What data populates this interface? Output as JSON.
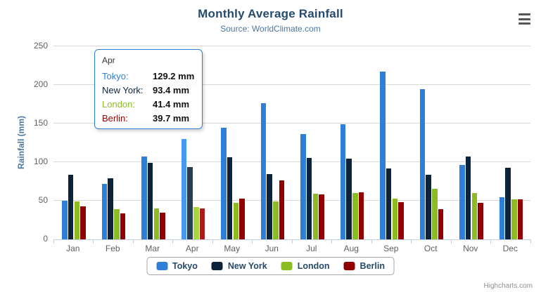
{
  "chart": {
    "title": "Monthly Average Rainfall",
    "subtitle": "Source: WorldClimate.com",
    "y_axis_title": "Rainfall (mm)",
    "credits_label": "Highcharts.com"
  },
  "chart_data": {
    "type": "bar",
    "title": "Monthly Average Rainfall",
    "subtitle": "Source: WorldClimate.com",
    "xlabel": "",
    "ylabel": "Rainfall (mm)",
    "ylim": [
      0,
      250
    ],
    "ytick_interval": 50,
    "yticks": [
      0,
      50,
      100,
      150,
      200,
      250
    ],
    "grid": true,
    "legend_position": "bottom",
    "hovered_category": "Apr",
    "categories": [
      "Jan",
      "Feb",
      "Mar",
      "Apr",
      "May",
      "Jun",
      "Jul",
      "Aug",
      "Sep",
      "Oct",
      "Nov",
      "Dec"
    ],
    "series": [
      {
        "name": "Tokyo",
        "color": "#2f7ed8",
        "hover_color": "#4897f1",
        "values": [
          49.9,
          71.5,
          106.4,
          129.2,
          144.0,
          176.0,
          135.6,
          148.5,
          216.4,
          194.1,
          95.6,
          54.4
        ]
      },
      {
        "name": "New York",
        "color": "#0d233a",
        "hover_color": "#283e55",
        "values": [
          83.6,
          78.8,
          98.5,
          93.4,
          106.0,
          84.5,
          105.0,
          104.3,
          91.2,
          83.5,
          106.6,
          92.3
        ]
      },
      {
        "name": "London",
        "color": "#8bbc21",
        "hover_color": "#a6d73c",
        "values": [
          48.9,
          38.8,
          39.3,
          41.4,
          47.0,
          48.3,
          59.0,
          59.6,
          52.4,
          65.2,
          59.3,
          51.2
        ]
      },
      {
        "name": "Berlin",
        "color": "#910000",
        "hover_color": "#ac1b1b",
        "values": [
          42.4,
          33.2,
          34.5,
          39.7,
          52.6,
          75.5,
          57.4,
          60.4,
          47.6,
          39.1,
          46.8,
          51.1
        ]
      }
    ],
    "axis_colors": {
      "grid": "#d8d8d8",
      "axis_line": "#c0d0e0",
      "labels": "#606060"
    }
  },
  "tooltip": {
    "header": "Apr",
    "border_color": "#2f7ed8",
    "unit": "mm",
    "rows": [
      {
        "label": "Tokyo",
        "value": "129.2 mm"
      },
      {
        "label": "New York",
        "value": "93.4 mm"
      },
      {
        "label": "London",
        "value": "41.4 mm"
      },
      {
        "label": "Berlin",
        "value": "39.7 mm"
      }
    ]
  }
}
